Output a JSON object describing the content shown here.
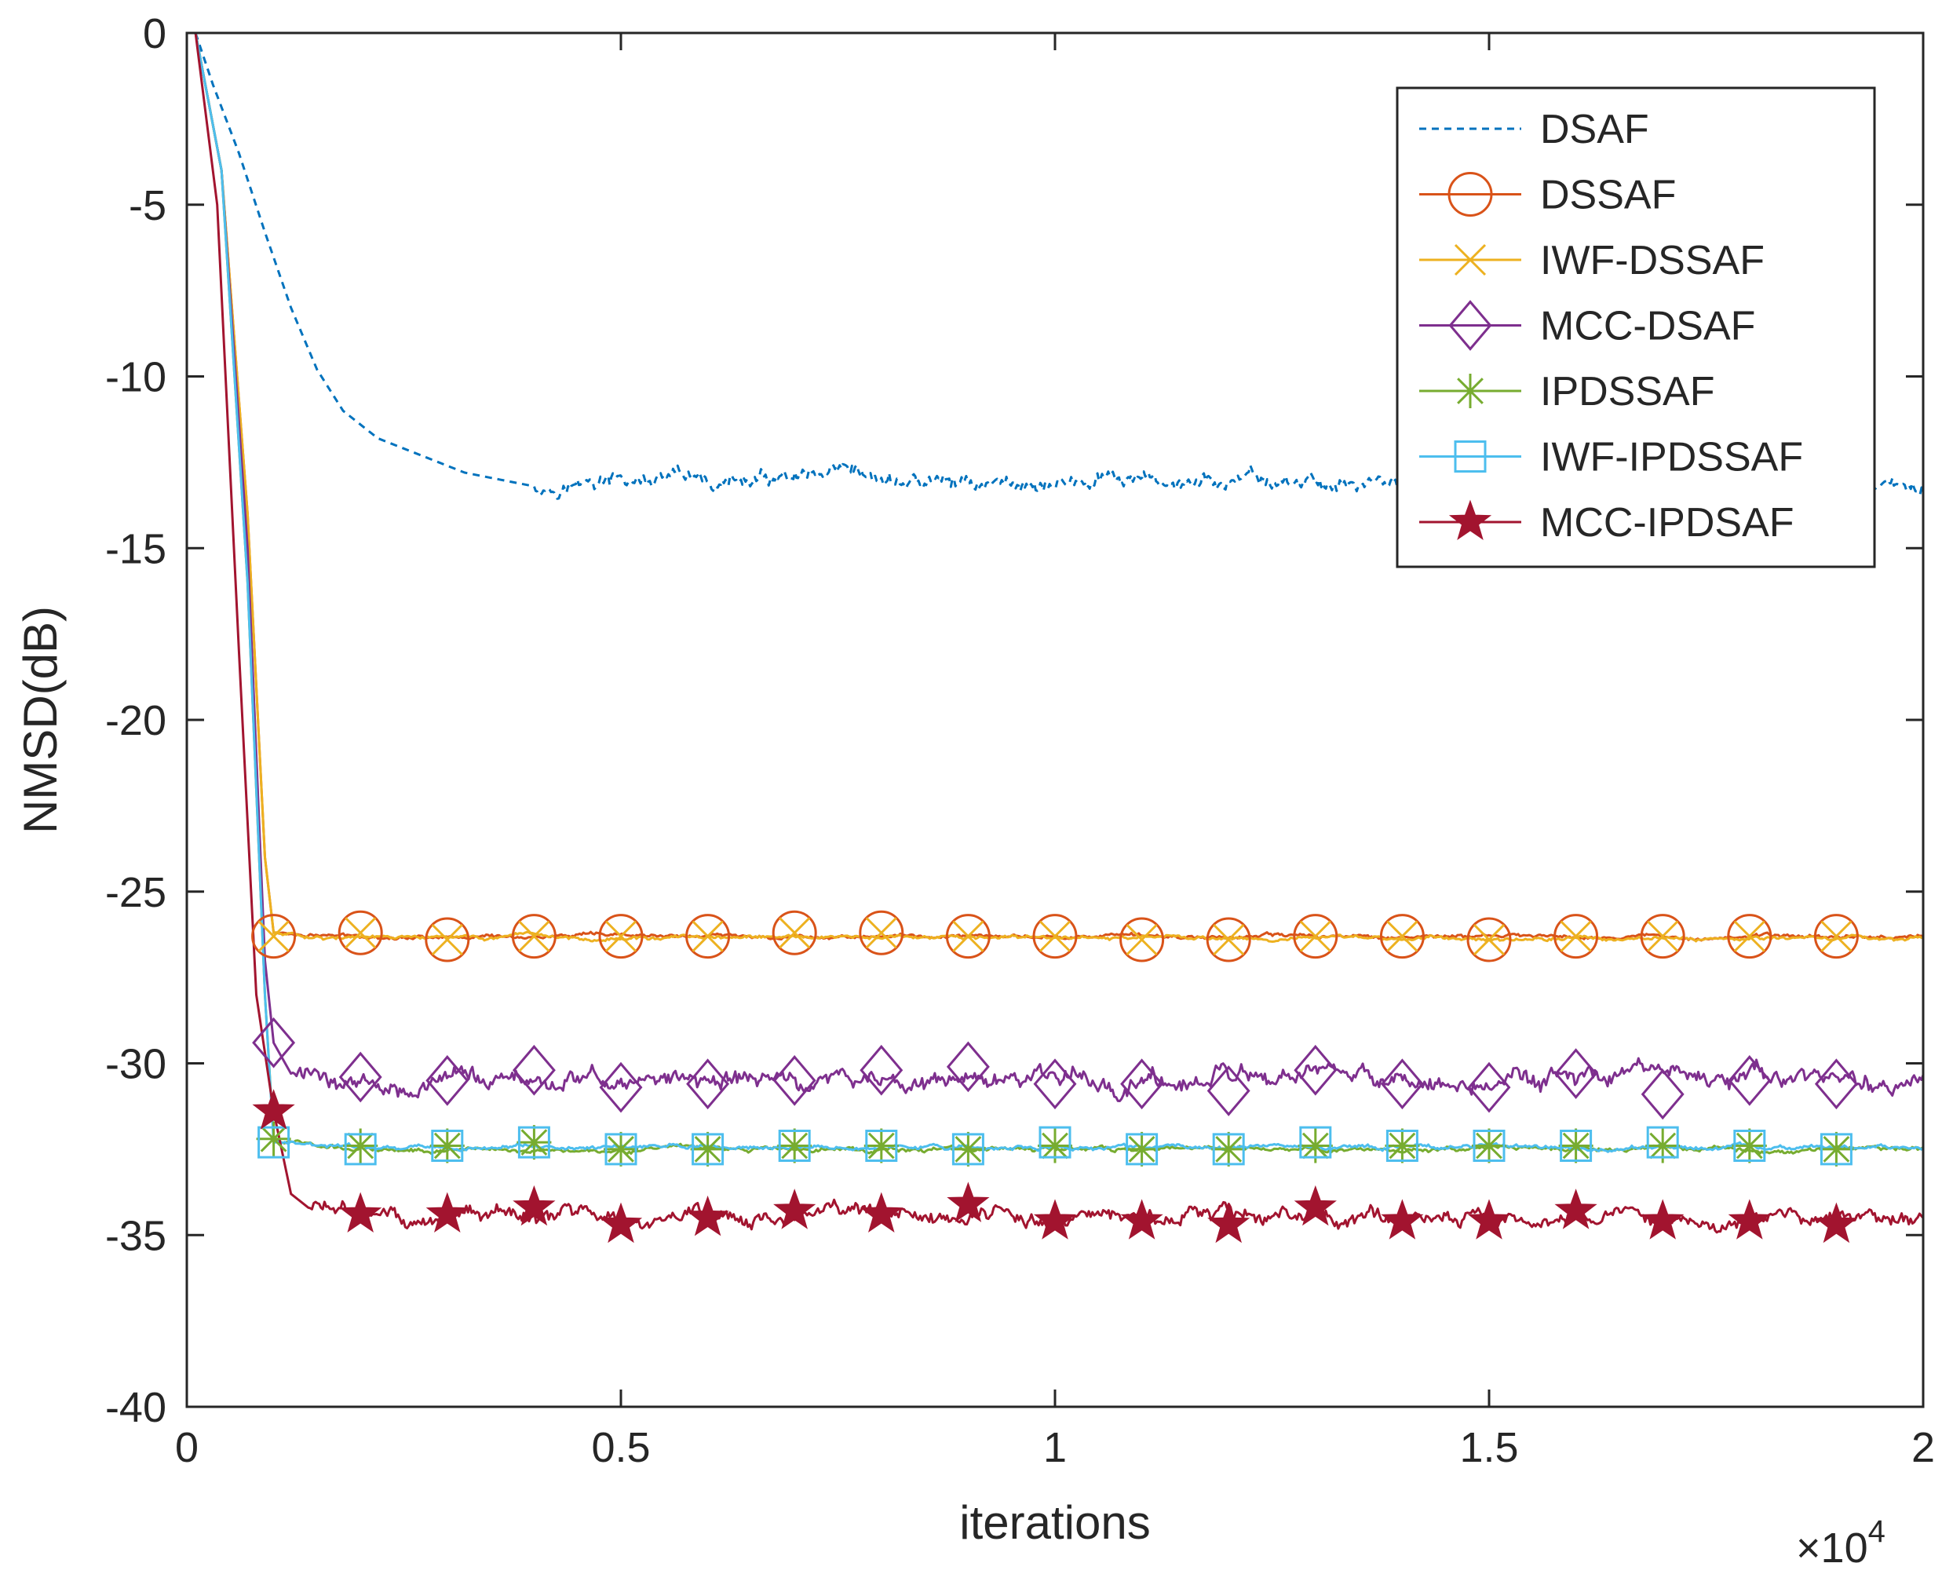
{
  "chart_data": {
    "type": "line",
    "title": "",
    "xlabel": "iterations",
    "ylabel": "NMSD(dB)",
    "x_exponent_label": "×10",
    "x_exponent": "4",
    "xlim": [
      0,
      2
    ],
    "ylim": [
      -40,
      0
    ],
    "xticks": [
      0,
      0.5,
      1,
      1.5,
      2
    ],
    "xtick_labels": [
      "0",
      "0.5",
      "1",
      "1.5",
      "2"
    ],
    "yticks": [
      0,
      -5,
      -10,
      -15,
      -20,
      -25,
      -30,
      -35,
      -40
    ],
    "ytick_labels": [
      "0",
      "-5",
      "-10",
      "-15",
      "-20",
      "-25",
      "-30",
      "-35",
      "-40"
    ],
    "grid": false,
    "legend_position": "top-right",
    "marker_x": [
      0.1,
      0.2,
      0.3,
      0.4,
      0.5,
      0.6,
      0.7,
      0.8,
      0.9,
      1.0,
      1.1,
      1.2,
      1.3,
      1.4,
      1.5,
      1.6,
      1.7,
      1.8,
      1.9
    ],
    "series": [
      {
        "name": "DSAF",
        "color": "#0072BD",
        "style": "dashed",
        "marker": "none",
        "curve": [
          [
            0.01,
            0
          ],
          [
            0.03,
            -1.5
          ],
          [
            0.06,
            -3.5
          ],
          [
            0.09,
            -5.8
          ],
          [
            0.12,
            -8.0
          ],
          [
            0.15,
            -9.8
          ],
          [
            0.18,
            -11.0
          ],
          [
            0.22,
            -11.8
          ],
          [
            0.27,
            -12.3
          ],
          [
            0.32,
            -12.8
          ],
          [
            0.36,
            -13.0
          ],
          [
            0.4,
            -13.2
          ]
        ],
        "steady_state": -13.1,
        "noise_amplitude": 0.25
      },
      {
        "name": "DSSAF",
        "color": "#D95319",
        "style": "solid",
        "marker": "circle",
        "curve": [
          [
            0.01,
            0
          ],
          [
            0.04,
            -4
          ],
          [
            0.07,
            -14
          ],
          [
            0.09,
            -24
          ],
          [
            0.1,
            -26.2
          ]
        ],
        "steady_state": -26.3,
        "noise_amplitude": 0.06,
        "marker_values": [
          -26.3,
          -26.2,
          -26.4,
          -26.3,
          -26.3,
          -26.3,
          -26.2,
          -26.2,
          -26.3,
          -26.3,
          -26.4,
          -26.4,
          -26.3,
          -26.3,
          -26.4,
          -26.3,
          -26.3,
          -26.3,
          -26.3
        ]
      },
      {
        "name": "IWF-DSSAF",
        "color": "#EDB120",
        "style": "solid",
        "marker": "x",
        "curve": [
          [
            0.01,
            0
          ],
          [
            0.04,
            -4
          ],
          [
            0.07,
            -14
          ],
          [
            0.09,
            -24
          ],
          [
            0.1,
            -26.2
          ]
        ],
        "steady_state": -26.35,
        "noise_amplitude": 0.06,
        "marker_values": [
          -26.3,
          -26.2,
          -26.4,
          -26.3,
          -26.3,
          -26.3,
          -26.2,
          -26.2,
          -26.3,
          -26.3,
          -26.4,
          -26.4,
          -26.3,
          -26.3,
          -26.4,
          -26.3,
          -26.3,
          -26.3,
          -26.3
        ]
      },
      {
        "name": "MCC-DSAF",
        "color": "#7E2F8E",
        "style": "solid",
        "marker": "diamond",
        "curve": [
          [
            0.01,
            0
          ],
          [
            0.04,
            -4
          ],
          [
            0.07,
            -15
          ],
          [
            0.09,
            -27
          ],
          [
            0.1,
            -29.4
          ],
          [
            0.12,
            -30.3
          ]
        ],
        "steady_state": -30.5,
        "noise_amplitude": 0.3,
        "marker_values": [
          -29.4,
          -30.4,
          -30.5,
          -30.2,
          -30.7,
          -30.6,
          -30.5,
          -30.2,
          -30.1,
          -30.6,
          -30.6,
          -30.8,
          -30.2,
          -30.6,
          -30.7,
          -30.3,
          -30.9,
          -30.5,
          -30.6
        ]
      },
      {
        "name": "IPDSSAF",
        "color": "#77AC30",
        "style": "solid",
        "marker": "asterisk",
        "curve": [
          [
            0.01,
            0
          ],
          [
            0.04,
            -4
          ],
          [
            0.07,
            -16
          ],
          [
            0.09,
            -28
          ],
          [
            0.1,
            -32.2
          ]
        ],
        "steady_state": -32.5,
        "noise_amplitude": 0.07,
        "marker_values": [
          -32.2,
          -32.4,
          -32.4,
          -32.3,
          -32.5,
          -32.5,
          -32.4,
          -32.4,
          -32.5,
          -32.4,
          -32.5,
          -32.5,
          -32.4,
          -32.4,
          -32.4,
          -32.4,
          -32.4,
          -32.4,
          -32.5
        ]
      },
      {
        "name": "IWF-IPDSSAF",
        "color": "#4DBEEE",
        "style": "solid",
        "marker": "square",
        "curve": [
          [
            0.01,
            0
          ],
          [
            0.04,
            -4
          ],
          [
            0.07,
            -16
          ],
          [
            0.09,
            -28
          ],
          [
            0.1,
            -32.3
          ]
        ],
        "steady_state": -32.45,
        "noise_amplitude": 0.07,
        "marker_values": [
          -32.3,
          -32.5,
          -32.4,
          -32.3,
          -32.5,
          -32.5,
          -32.4,
          -32.4,
          -32.5,
          -32.3,
          -32.5,
          -32.5,
          -32.3,
          -32.4,
          -32.4,
          -32.4,
          -32.3,
          -32.4,
          -32.5
        ]
      },
      {
        "name": "MCC-IPDSAF",
        "color": "#A2142F",
        "style": "solid",
        "marker": "star",
        "curve": [
          [
            0.01,
            0
          ],
          [
            0.035,
            -5
          ],
          [
            0.06,
            -18
          ],
          [
            0.08,
            -28
          ],
          [
            0.1,
            -31.4
          ],
          [
            0.12,
            -33.8
          ],
          [
            0.14,
            -34.2
          ]
        ],
        "steady_state": -34.5,
        "noise_amplitude": 0.25,
        "marker_values": [
          -31.4,
          -34.4,
          -34.4,
          -34.2,
          -34.7,
          -34.5,
          -34.3,
          -34.4,
          -34.1,
          -34.6,
          -34.6,
          -34.7,
          -34.2,
          -34.6,
          -34.6,
          -34.3,
          -34.6,
          -34.6,
          -34.7
        ]
      }
    ]
  }
}
